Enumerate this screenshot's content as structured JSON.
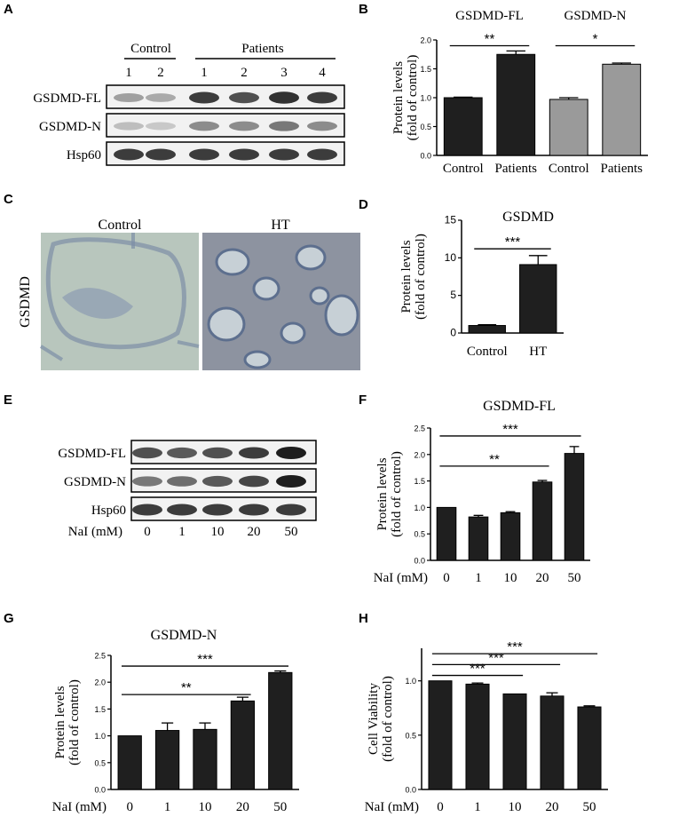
{
  "panels": {
    "A": "A",
    "B": "B",
    "C": "C",
    "D": "D",
    "E": "E",
    "F": "F",
    "G": "G",
    "H": "H"
  },
  "blot_a": {
    "group_control": "Control",
    "group_patients": "Patients",
    "lanes": [
      "1",
      "2",
      "1",
      "2",
      "3",
      "4"
    ],
    "rows": [
      "GSDMD-FL",
      "GSDMD-N",
      "Hsp60"
    ],
    "intensity": [
      [
        0.35,
        0.3,
        0.85,
        0.75,
        0.9,
        0.85
      ],
      [
        0.2,
        0.15,
        0.45,
        0.45,
        0.55,
        0.45
      ],
      [
        0.85,
        0.85,
        0.85,
        0.85,
        0.85,
        0.85
      ]
    ]
  },
  "ihc_c": {
    "side_label": "GSDMD",
    "titles": [
      "Control",
      "HT"
    ]
  },
  "blot_e": {
    "rows": [
      "GSDMD-FL",
      "GSDMD-N",
      "Hsp60"
    ],
    "nai_label": "NaI (mM)",
    "lanes": [
      "0",
      "1",
      "10",
      "20",
      "50"
    ],
    "intensity": [
      [
        0.75,
        0.7,
        0.75,
        0.85,
        1.0
      ],
      [
        0.55,
        0.6,
        0.7,
        0.8,
        1.0
      ],
      [
        0.85,
        0.85,
        0.85,
        0.85,
        0.85
      ]
    ]
  },
  "colors": {
    "bar_dark": "#1f1f1f",
    "bar_gray": "#9a9a9a",
    "axis": "#000000"
  },
  "chart_data": [
    {
      "id": "B",
      "type": "bar",
      "title": "",
      "group_titles": [
        "GSDMD-FL",
        "GSDMD-N"
      ],
      "categories": [
        "Control",
        "Patients",
        "Control",
        "Patients"
      ],
      "values": [
        1.0,
        1.75,
        0.97,
        1.58
      ],
      "errors": [
        0.01,
        0.06,
        0.03,
        0.02
      ],
      "bar_colors": [
        "#1f1f1f",
        "#1f1f1f",
        "#9a9a9a",
        "#9a9a9a"
      ],
      "ylabel_lines": [
        "Protein levels",
        "(fold of control)"
      ],
      "ylim": [
        0,
        2.0
      ],
      "yticks": [
        "0.0",
        "0.5",
        "1.0",
        "1.5",
        "2.0"
      ],
      "brackets": [
        {
          "from": 0,
          "to": 1,
          "y": 1.9,
          "text": "**"
        },
        {
          "from": 2,
          "to": 3,
          "y": 1.9,
          "text": "*"
        }
      ]
    },
    {
      "id": "D",
      "type": "bar",
      "title": "GSDMD",
      "categories": [
        "Control",
        "HT"
      ],
      "values": [
        1.0,
        9.1
      ],
      "errors": [
        0.1,
        1.2
      ],
      "ylabel_lines": [
        "Protein levels",
        "(fold of control)"
      ],
      "ylim": [
        0,
        15
      ],
      "yticks": [
        "0",
        "5",
        "10",
        "15"
      ],
      "brackets": [
        {
          "from": 0,
          "to": 1,
          "y": 11.2,
          "text": "***"
        }
      ]
    },
    {
      "id": "F",
      "type": "bar",
      "title": "GSDMD-FL",
      "xlabel": "NaI (mM)",
      "categories": [
        "0",
        "1",
        "10",
        "20",
        "50"
      ],
      "values": [
        1.0,
        0.82,
        0.9,
        1.48,
        2.02
      ],
      "errors": [
        0.0,
        0.03,
        0.02,
        0.03,
        0.13
      ],
      "ylabel_lines": [
        "Protein levels",
        "(fold of control)"
      ],
      "ylim": [
        0,
        2.5
      ],
      "yticks": [
        "0.0",
        "0.5",
        "1.0",
        "1.5",
        "2.0",
        "2.5"
      ],
      "brackets": [
        {
          "from": 0,
          "to": 3,
          "y": 1.78,
          "text": "**"
        },
        {
          "from": 0,
          "to": 4,
          "y": 2.35,
          "text": "***"
        }
      ]
    },
    {
      "id": "G",
      "type": "bar",
      "title": "GSDMD-N",
      "xlabel": "NaI (mM)",
      "categories": [
        "0",
        "1",
        "10",
        "20",
        "50"
      ],
      "values": [
        1.0,
        1.1,
        1.12,
        1.65,
        2.18
      ],
      "errors": [
        0.0,
        0.14,
        0.12,
        0.07,
        0.03
      ],
      "ylabel_lines": [
        "Protein levels",
        "(fold of control)"
      ],
      "ylim": [
        0,
        2.5
      ],
      "yticks": [
        "0.0",
        "0.5",
        "1.0",
        "1.5",
        "2.0",
        "2.5"
      ],
      "brackets": [
        {
          "from": 0,
          "to": 3,
          "y": 1.77,
          "text": "**"
        },
        {
          "from": 0,
          "to": 4,
          "y": 2.3,
          "text": "***"
        }
      ]
    },
    {
      "id": "H",
      "type": "bar",
      "title": "",
      "xlabel": "NaI (mM)",
      "categories": [
        "0",
        "1",
        "10",
        "20",
        "50"
      ],
      "values": [
        1.0,
        0.97,
        0.88,
        0.86,
        0.76
      ],
      "errors": [
        0.0,
        0.01,
        0.0,
        0.03,
        0.01
      ],
      "ylabel_lines": [
        "Cell Viability",
        "(fold of control)"
      ],
      "ylim": [
        0,
        1.3
      ],
      "yticks": [
        "0.0",
        "0.5",
        "1.0"
      ],
      "brackets": [
        {
          "from": 0,
          "to": 2,
          "y": 1.05,
          "text": "***"
        },
        {
          "from": 0,
          "to": 3,
          "y": 1.15,
          "text": "***"
        },
        {
          "from": 0,
          "to": 4,
          "y": 1.25,
          "text": "***"
        }
      ]
    }
  ]
}
